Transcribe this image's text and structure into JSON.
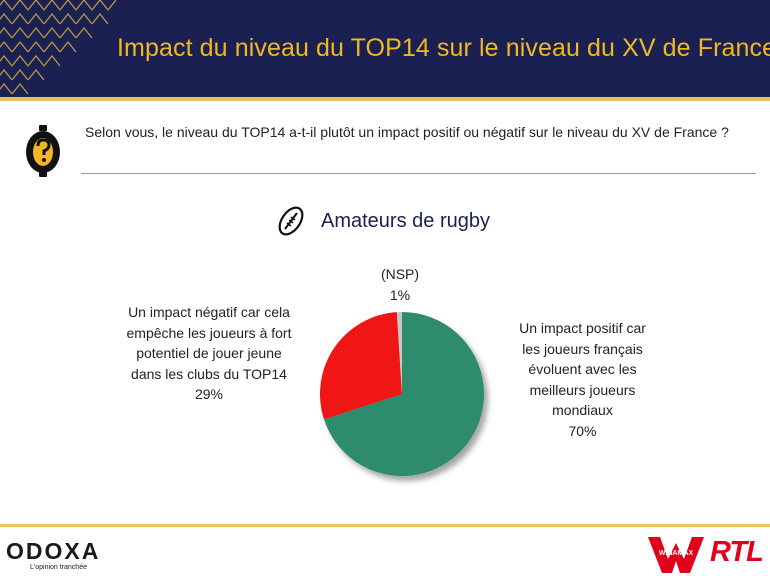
{
  "header": {
    "title": "Impact du niveau du TOP14 sur le niveau du XV de France",
    "background_color": "#1b2052",
    "title_color": "#f2b820"
  },
  "question": {
    "text": "Selon vous, le niveau du TOP14 a-t-il plutôt un impact positif ou négatif sur le niveau du XV de France ?",
    "icon": "question-mark-badge-icon"
  },
  "segment": {
    "title": "Amateurs de rugby",
    "icon": "rugby-ball-icon"
  },
  "chart_data": {
    "type": "pie",
    "slices": [
      {
        "label_lines": [
          "Un impact positif car",
          "les joueurs français",
          "évoluent avec les",
          "meilleurs joueurs",
          "mondiaux"
        ],
        "value": 70,
        "value_label": "70%",
        "color": "#2e8b6e"
      },
      {
        "label_lines": [
          "Un impact négatif car cela",
          "empêche les joueurs à fort",
          "potentiel de jouer jeune",
          "dans les clubs du TOP14"
        ],
        "value": 29,
        "value_label": "29%",
        "color": "#f01818"
      },
      {
        "label_lines": [
          "(NSP)"
        ],
        "value": 1,
        "value_label": "1%",
        "color": "#c8c8c8"
      }
    ]
  },
  "footer": {
    "odoxa": "ODOXA",
    "odoxa_tagline": "L'opinion tranchée",
    "winamax": "WINAMAX",
    "rtl": "RTL",
    "accent_color": "#e9c35a"
  }
}
